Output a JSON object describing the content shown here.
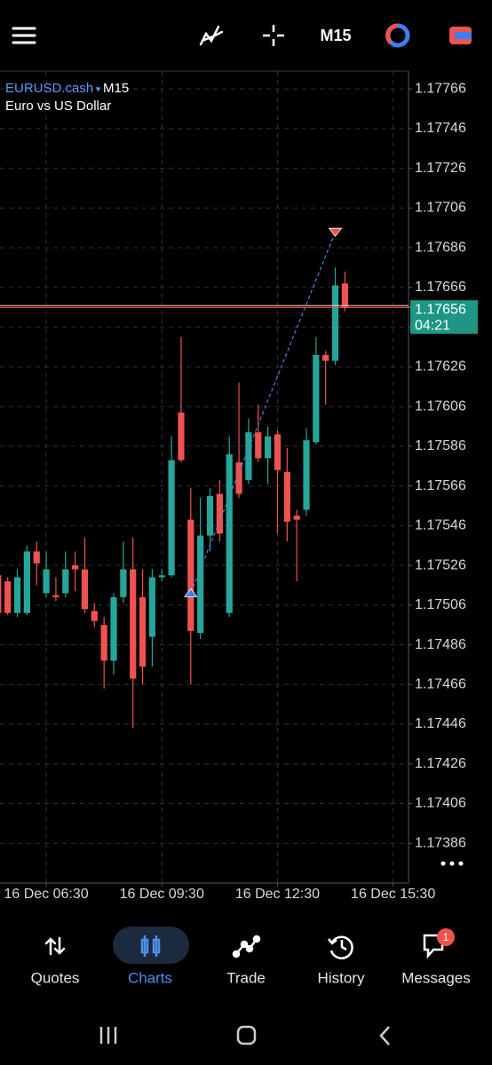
{
  "toolbar": {
    "timeframe": "M15"
  },
  "chart_data": {
    "type": "candlestick",
    "symbol": "EURUSD.cash",
    "timeframe": "M15",
    "description": "Euro vs US Dollar",
    "open": [
      1.17521,
      1.17518,
      1.17502,
      1.17502,
      1.17533,
      1.17512,
      1.17511,
      1.17512,
      1.17526,
      1.17524,
      1.17503,
      1.17496,
      1.17478,
      1.1751,
      1.17524,
      1.1751,
      1.1749,
      1.1752,
      1.17521,
      1.17603,
      1.17549,
      1.17492,
      1.17541,
      1.17562,
      1.17502,
      1.17578,
      1.17569,
      1.17593,
      1.1758,
      1.17592,
      1.17573,
      1.17551,
      1.17554,
      1.17588,
      1.17632,
      1.17629,
      1.17668
    ],
    "high": [
      1.17524,
      1.1752,
      1.17524,
      1.17536,
      1.17538,
      1.17533,
      1.1752,
      1.17533,
      1.17533,
      1.1754,
      1.17507,
      1.175,
      1.17512,
      1.17538,
      1.1754,
      1.17524,
      1.17524,
      1.17524,
      1.17591,
      1.17641,
      1.17565,
      1.1756,
      1.17565,
      1.17569,
      1.17591,
      1.17618,
      1.176,
      1.17607,
      1.17596,
      1.17594,
      1.17585,
      1.17554,
      1.17595,
      1.17641,
      1.17634,
      1.17676,
      1.17674
    ],
    "low": [
      1.175,
      1.17501,
      1.175,
      1.17501,
      1.17516,
      1.1751,
      1.17508,
      1.1751,
      1.17513,
      1.17502,
      1.17495,
      1.17464,
      1.17471,
      1.17507,
      1.17444,
      1.17466,
      1.17475,
      1.17518,
      1.1752,
      1.17578,
      1.17466,
      1.17489,
      1.17533,
      1.17538,
      1.175,
      1.1756,
      1.17567,
      1.17578,
      1.17567,
      1.17542,
      1.17538,
      1.17518,
      1.17551,
      1.17587,
      1.17607,
      1.17627,
      1.17654
    ],
    "close": [
      1.17502,
      1.17502,
      1.1752,
      1.17533,
      1.17527,
      1.17524,
      1.1751,
      1.17524,
      1.17524,
      1.17504,
      1.17498,
      1.17478,
      1.1751,
      1.17524,
      1.17469,
      1.17475,
      1.1752,
      1.17521,
      1.17579,
      1.17579,
      1.17493,
      1.17541,
      1.17561,
      1.17542,
      1.17582,
      1.17562,
      1.17593,
      1.1758,
      1.17591,
      1.17574,
      1.17548,
      1.17549,
      1.17589,
      1.17632,
      1.17629,
      1.17667,
      1.17656
    ],
    "up_color": "#26a69a",
    "down_color": "#ef5350",
    "xlim": [
      0.2,
      42.6
    ],
    "xticks": [
      {
        "value": 5,
        "label": "16 Dec 06:30"
      },
      {
        "value": 17,
        "label": "16 Dec 09:30"
      },
      {
        "value": 29,
        "label": "16 Dec 12:30"
      },
      {
        "value": 41,
        "label": "16 Dec 15:30"
      }
    ],
    "ylim": [
      1.17366,
      1.17775
    ],
    "yticks": [
      1.17766,
      1.17746,
      1.17726,
      1.17706,
      1.17686,
      1.17666,
      1.17646,
      1.17626,
      1.17606,
      1.17586,
      1.17566,
      1.17546,
      1.17526,
      1.17506,
      1.17486,
      1.17466,
      1.17446,
      1.17426,
      1.17406,
      1.17386
    ],
    "grid": true,
    "current_price": 1.17656,
    "countdown": "04:21",
    "deals": [
      {
        "side": "buy",
        "x": 20,
        "price": 1.17512
      },
      {
        "side": "sell",
        "x": 35,
        "price": 1.17694
      }
    ]
  },
  "nav": {
    "items": [
      "Quotes",
      "Charts",
      "Trade",
      "History",
      "Messages"
    ],
    "active": 1,
    "badge": 1
  }
}
